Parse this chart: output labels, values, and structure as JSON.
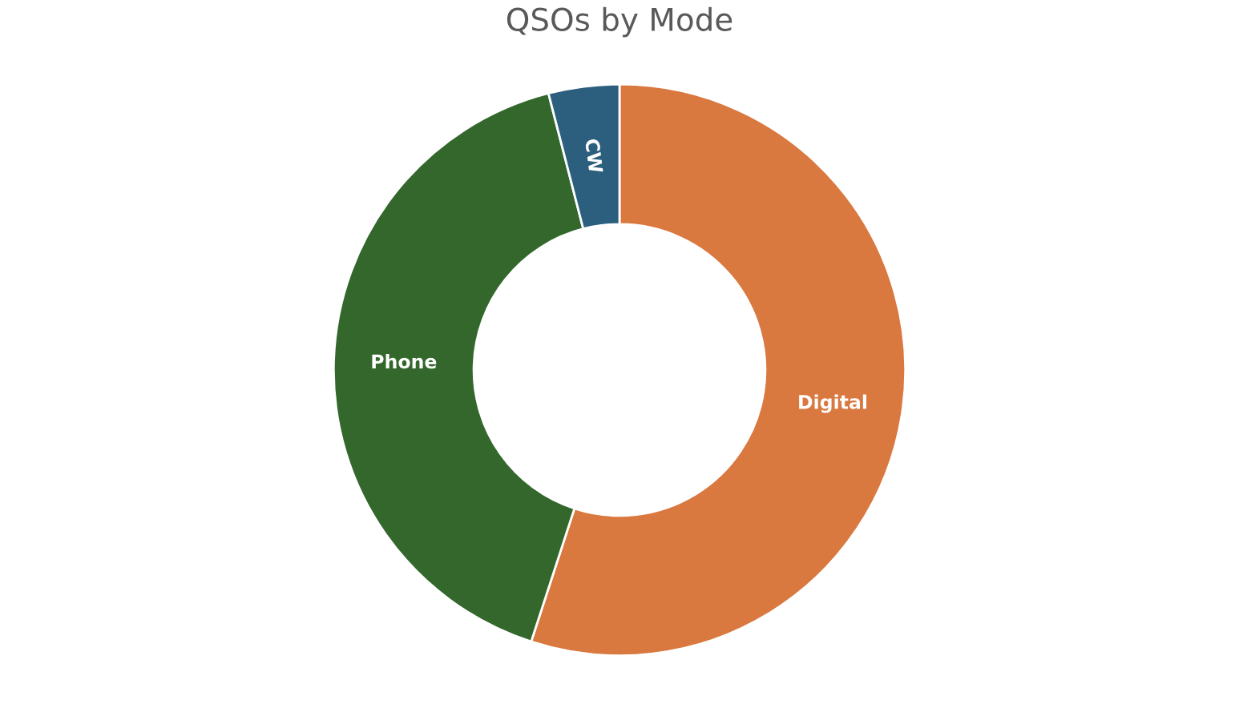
{
  "chart_data": {
    "type": "donut",
    "title": "QSOs by Mode",
    "categories": [
      "Digital",
      "Phone",
      "CW"
    ],
    "values": [
      55,
      41,
      4
    ],
    "colors": [
      "#d9783f",
      "#33672c",
      "#2c5f7e"
    ],
    "legend": false
  }
}
